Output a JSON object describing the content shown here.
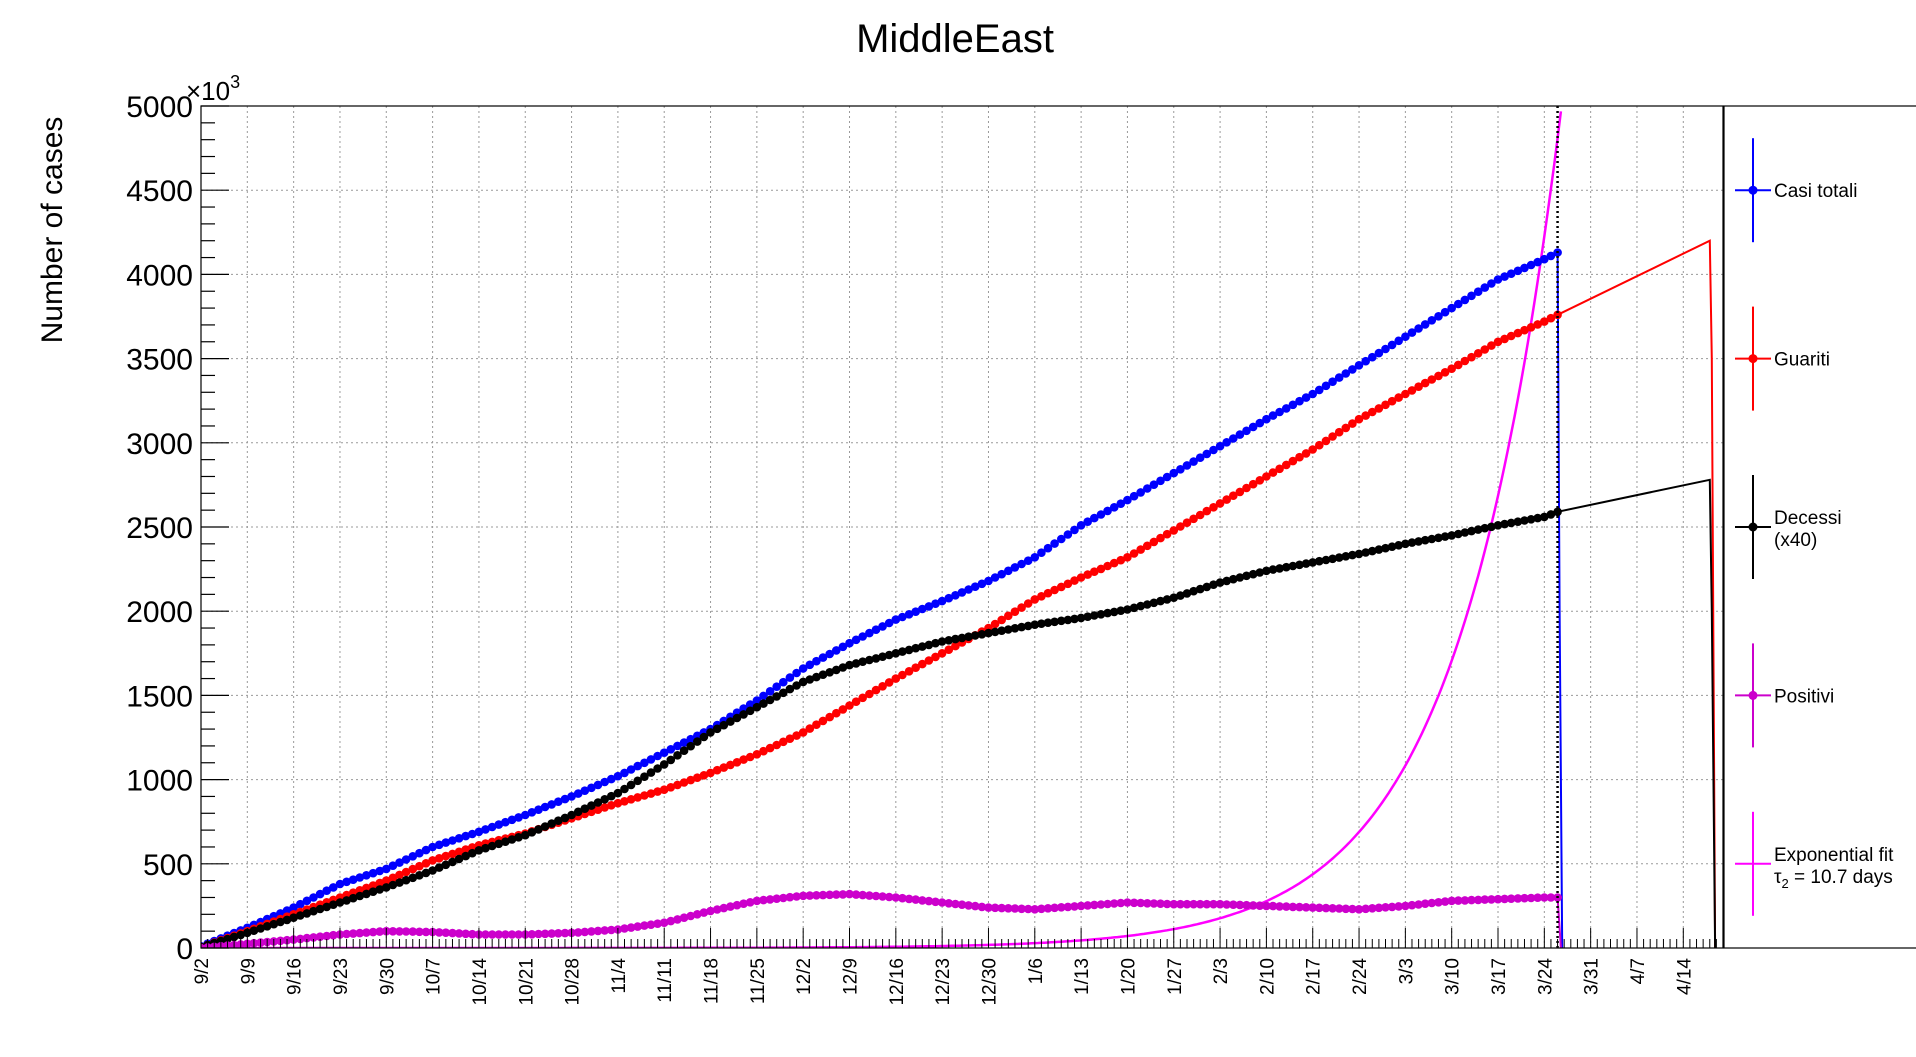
{
  "chart_data": {
    "type": "line",
    "title": "MiddleEast",
    "ylabel": "Number of cases",
    "xlabel": "",
    "y_multiplier_label": "×10",
    "y_multiplier_exponent": "3",
    "ylim": [
      0,
      5000
    ],
    "yticks": [
      0,
      500,
      1000,
      1500,
      2000,
      2500,
      3000,
      3500,
      4000,
      4500,
      5000
    ],
    "x_range_days": [
      0,
      230
    ],
    "x_ticks": [
      {
        "day": 0,
        "label": "9/2"
      },
      {
        "day": 7,
        "label": "9/9"
      },
      {
        "day": 14,
        "label": "9/16"
      },
      {
        "day": 21,
        "label": "9/23"
      },
      {
        "day": 28,
        "label": "9/30"
      },
      {
        "day": 35,
        "label": "10/7"
      },
      {
        "day": 42,
        "label": "10/14"
      },
      {
        "day": 49,
        "label": "10/21"
      },
      {
        "day": 56,
        "label": "10/28"
      },
      {
        "day": 63,
        "label": "11/4"
      },
      {
        "day": 70,
        "label": "11/11"
      },
      {
        "day": 77,
        "label": "11/18"
      },
      {
        "day": 84,
        "label": "11/25"
      },
      {
        "day": 91,
        "label": "12/2"
      },
      {
        "day": 98,
        "label": "12/9"
      },
      {
        "day": 105,
        "label": "12/16"
      },
      {
        "day": 112,
        "label": "12/23"
      },
      {
        "day": 119,
        "label": "12/30"
      },
      {
        "day": 126,
        "label": "1/6"
      },
      {
        "day": 133,
        "label": "1/13"
      },
      {
        "day": 140,
        "label": "1/20"
      },
      {
        "day": 147,
        "label": "1/27"
      },
      {
        "day": 154,
        "label": "2/3"
      },
      {
        "day": 161,
        "label": "2/10"
      },
      {
        "day": 168,
        "label": "2/17"
      },
      {
        "day": 175,
        "label": "2/24"
      },
      {
        "day": 182,
        "label": "3/3"
      },
      {
        "day": 189,
        "label": "3/10"
      },
      {
        "day": 196,
        "label": "3/17"
      },
      {
        "day": 203,
        "label": "3/24"
      },
      {
        "day": 210,
        "label": "3/31"
      },
      {
        "day": 217,
        "label": "4/7"
      },
      {
        "day": 224,
        "label": "4/14"
      }
    ],
    "grid": true,
    "legend_position": "right",
    "vertical_line_day": 205,
    "series": [
      {
        "name": "Casi totali",
        "color": "#0000ff",
        "markers": true,
        "x": [
          0,
          7,
          14,
          21,
          28,
          35,
          42,
          49,
          56,
          63,
          70,
          77,
          84,
          91,
          98,
          105,
          112,
          119,
          126,
          133,
          140,
          147,
          154,
          161,
          168,
          175,
          182,
          189,
          196,
          203,
          205
        ],
        "y": [
          10,
          120,
          240,
          380,
          470,
          600,
          690,
          790,
          900,
          1020,
          1160,
          1300,
          1470,
          1660,
          1810,
          1950,
          2060,
          2180,
          2320,
          2510,
          2660,
          2820,
          2980,
          3140,
          3290,
          3460,
          3630,
          3800,
          3970,
          4090,
          4130
        ]
      },
      {
        "name": "Guariti",
        "color": "#ff0000",
        "markers": true,
        "x": [
          0,
          7,
          14,
          21,
          28,
          35,
          42,
          49,
          56,
          63,
          70,
          77,
          84,
          91,
          98,
          105,
          112,
          119,
          126,
          133,
          140,
          147,
          154,
          161,
          168,
          175,
          182,
          189,
          196,
          203,
          205
        ],
        "y": [
          5,
          100,
          200,
          300,
          400,
          520,
          610,
          680,
          770,
          860,
          940,
          1040,
          1150,
          1280,
          1440,
          1600,
          1750,
          1900,
          2070,
          2200,
          2320,
          2480,
          2640,
          2800,
          2960,
          3140,
          3290,
          3440,
          3600,
          3720,
          3760
        ]
      },
      {
        "name": "Decessi (x40)",
        "color": "#000000",
        "markers": true,
        "x": [
          0,
          7,
          14,
          21,
          28,
          35,
          42,
          49,
          56,
          63,
          70,
          77,
          84,
          91,
          98,
          105,
          112,
          119,
          126,
          133,
          140,
          147,
          154,
          161,
          168,
          175,
          182,
          189,
          196,
          203,
          205
        ],
        "y": [
          5,
          90,
          180,
          270,
          360,
          460,
          580,
          670,
          790,
          920,
          1090,
          1280,
          1430,
          1580,
          1680,
          1750,
          1820,
          1870,
          1920,
          1960,
          2010,
          2080,
          2170,
          2240,
          2290,
          2340,
          2400,
          2450,
          2510,
          2560,
          2590
        ]
      },
      {
        "name": "Positivi",
        "color": "#cc00cc",
        "markers": true,
        "x": [
          0,
          7,
          14,
          21,
          28,
          35,
          42,
          49,
          56,
          63,
          70,
          77,
          84,
          91,
          98,
          105,
          112,
          119,
          126,
          133,
          140,
          147,
          154,
          161,
          168,
          175,
          182,
          189,
          196,
          203,
          205
        ],
        "y": [
          0,
          25,
          50,
          80,
          100,
          95,
          80,
          80,
          90,
          110,
          150,
          220,
          280,
          310,
          320,
          300,
          270,
          240,
          230,
          250,
          270,
          260,
          260,
          250,
          240,
          230,
          250,
          280,
          290,
          300,
          300
        ]
      }
    ],
    "extension_lines": [
      {
        "name": "Guariti",
        "color": "#ff0000",
        "x": [
          205,
          228,
          228.3,
          228.8
        ],
        "y": [
          3760,
          4200,
          3500,
          0
        ]
      },
      {
        "name": "Decessi (x40)",
        "color": "#000000",
        "x": [
          205,
          228,
          228.3,
          228.8
        ],
        "y": [
          2590,
          2780,
          2000,
          0
        ]
      },
      {
        "name": "Casi totali",
        "color": "#0000ff",
        "x": [
          205,
          205.3,
          205.7
        ],
        "y": [
          4130,
          2000,
          0
        ]
      },
      {
        "name": "Positivi",
        "color": "#cc00cc",
        "x": [
          205,
          205.5
        ],
        "y": [
          300,
          0
        ]
      }
    ],
    "fit": {
      "name": "Exponential fit",
      "label_line1": "Exponential fit",
      "label_line2_sym": "τ",
      "label_line2_sub": "2",
      "label_line2_rest": " = 10.7 days",
      "color": "#ff00ff",
      "tau_days": 10.7,
      "x_start": 0,
      "x_end": 205.6,
      "y_at_end": 5000
    },
    "legend": [
      {
        "label": "Casi totali",
        "color": "#0000ff"
      },
      {
        "label": "Guariti",
        "color": "#ff0000"
      },
      {
        "label": "Decessi",
        "label2": "(x40)",
        "color": "#000000"
      },
      {
        "label": "Positivi",
        "color": "#cc00cc"
      },
      {
        "label": "Exponential fit",
        "label2_sym": "τ",
        "label2_sub": "2",
        "label2_rest": " = 10.7 days",
        "color": "#ff00ff",
        "is_fit": true
      }
    ]
  }
}
